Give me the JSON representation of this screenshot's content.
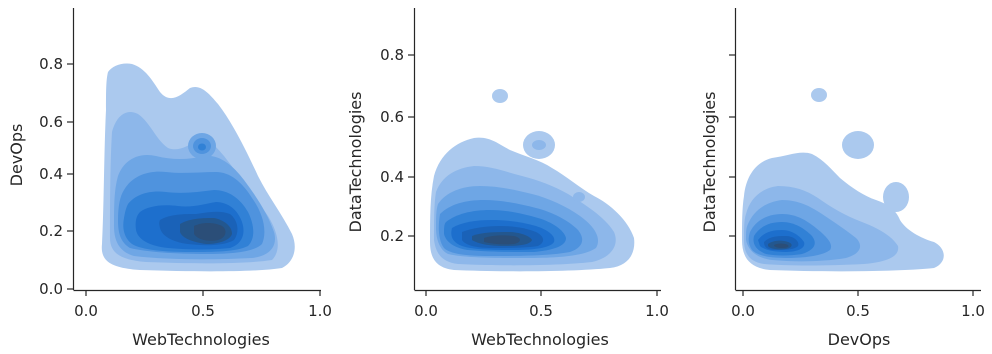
{
  "chart_data": [
    {
      "type": "kde_contour",
      "xlabel": "WebTechnologies",
      "ylabel": "DevOps",
      "xlim": [
        -0.03,
        1.0
      ],
      "ylim": [
        0.0,
        0.97
      ],
      "xticks": [
        "0.0",
        "0.5",
        "1.0"
      ],
      "xtick_values": [
        0.0,
        0.5,
        1.0
      ],
      "yticks": [
        "0.0",
        "0.2",
        "0.4",
        "0.6",
        "0.8"
      ],
      "ytick_values": [
        0.0,
        0.2,
        0.4,
        0.6,
        0.8
      ],
      "levels": 10,
      "colormap": [
        "#aac8ee",
        "#1f6fd0",
        "#2b4e78"
      ],
      "density_centers": [
        {
          "x": 0.55,
          "y": 0.18,
          "weight": 1.0
        },
        {
          "x": 0.3,
          "y": 0.25,
          "weight": 0.55
        },
        {
          "x": 0.5,
          "y": 0.5,
          "weight": 0.2
        }
      ],
      "outer_extent": {
        "x": [
          0.1,
          0.88
        ],
        "y": [
          0.13,
          0.8
        ]
      }
    },
    {
      "type": "kde_contour",
      "xlabel": "WebTechnologies",
      "ylabel": "DataTechnologies",
      "xlim": [
        -0.03,
        1.0
      ],
      "ylim": [
        0.08,
        0.95
      ],
      "xticks": [
        "0.0",
        "0.5",
        "1.0"
      ],
      "xtick_values": [
        0.0,
        0.5,
        1.0
      ],
      "yticks": [
        "0.2",
        "0.4",
        "0.6",
        "0.8"
      ],
      "ytick_values": [
        0.2,
        0.4,
        0.6,
        0.8
      ],
      "levels": 10,
      "colormap": [
        "#aac8ee",
        "#1f6fd0",
        "#2b4e78"
      ],
      "density_centers": [
        {
          "x": 0.35,
          "y": 0.14,
          "weight": 1.0
        },
        {
          "x": 0.5,
          "y": 0.5,
          "weight": 0.15
        },
        {
          "x": 0.32,
          "y": 0.67,
          "weight": 0.08
        }
      ],
      "outer_extent": {
        "x": [
          0.02,
          0.9
        ],
        "y": [
          0.1,
          0.67
        ]
      }
    },
    {
      "type": "kde_contour",
      "xlabel": "DevOps",
      "ylabel": "DataTechnologies",
      "xlim": [
        -0.03,
        1.0
      ],
      "ylim": [
        0.08,
        0.95
      ],
      "xticks": [
        "0.0",
        "0.5",
        "1.0"
      ],
      "xtick_values": [
        0.0,
        0.5,
        1.0
      ],
      "yticks": [
        "",
        "",
        "",
        ""
      ],
      "ytick_values": [
        0.2,
        0.4,
        0.6,
        0.8
      ],
      "levels": 10,
      "colormap": [
        "#aac8ee",
        "#1f6fd0",
        "#2b4e78"
      ],
      "density_centers": [
        {
          "x": 0.18,
          "y": 0.14,
          "weight": 1.0
        },
        {
          "x": 0.5,
          "y": 0.5,
          "weight": 0.15
        },
        {
          "x": 0.33,
          "y": 0.67,
          "weight": 0.08
        },
        {
          "x": 0.66,
          "y": 0.33,
          "weight": 0.1
        }
      ],
      "outer_extent": {
        "x": [
          0.0,
          0.86
        ],
        "y": [
          0.1,
          0.67
        ]
      }
    }
  ]
}
